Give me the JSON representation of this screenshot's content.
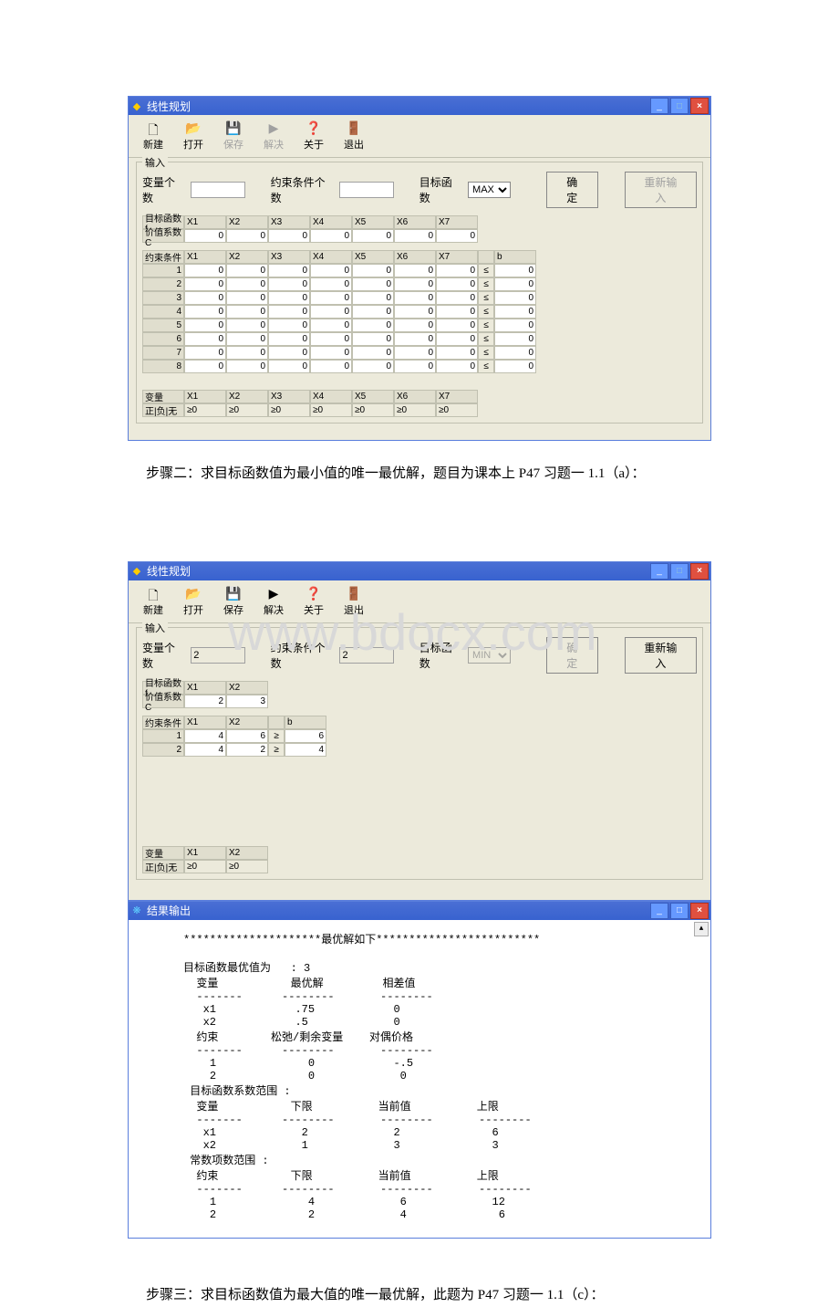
{
  "watermark": "www.bdocx.com",
  "win1": {
    "title": "线性规划",
    "toolbar": [
      "新建",
      "打开",
      "保存",
      "解决",
      "关于",
      "退出"
    ],
    "input_legend": "输入",
    "labels": {
      "vars": "变量个数",
      "cons": "约束条件个数",
      "obj": "目标函数"
    },
    "obj_sel": "MAX",
    "confirm": "确定",
    "reinput": "重新输入",
    "obj_hdr": "目标函数f",
    "coef_hdr": "价值系数C",
    "xhdr": [
      "X1",
      "X2",
      "X3",
      "X4",
      "X5",
      "X6",
      "X7"
    ],
    "coef": [
      "0",
      "0",
      "0",
      "0",
      "0",
      "0",
      "0"
    ],
    "con_hdr": "约束条件",
    "b_hdr": "b",
    "ineq": "≤",
    "rows": [
      [
        "1",
        "0",
        "0",
        "0",
        "0",
        "0",
        "0",
        "0",
        "0"
      ],
      [
        "2",
        "0",
        "0",
        "0",
        "0",
        "0",
        "0",
        "0",
        "0"
      ],
      [
        "3",
        "0",
        "0",
        "0",
        "0",
        "0",
        "0",
        "0",
        "0"
      ],
      [
        "4",
        "0",
        "0",
        "0",
        "0",
        "0",
        "0",
        "0",
        "0"
      ],
      [
        "5",
        "0",
        "0",
        "0",
        "0",
        "0",
        "0",
        "0",
        "0"
      ],
      [
        "6",
        "0",
        "0",
        "0",
        "0",
        "0",
        "0",
        "0",
        "0"
      ],
      [
        "7",
        "0",
        "0",
        "0",
        "0",
        "0",
        "0",
        "0",
        "0"
      ],
      [
        "8",
        "0",
        "0",
        "0",
        "0",
        "0",
        "0",
        "0",
        "0"
      ]
    ],
    "var_hdr": "变量",
    "pn_hdr": "正|负|无",
    "ge": "≥0"
  },
  "text1": "步骤二：求目标函数值为最小值的唯一最优解，题目为课本上 P47 习题一 1.1（a）：",
  "win2": {
    "title": "线性规划",
    "vars_val": "2",
    "cons_val": "2",
    "obj_sel": "MIN",
    "xhdr": [
      "X1",
      "X2"
    ],
    "coef": [
      "2",
      "3"
    ],
    "b_hdr": "b",
    "ineq": "≥",
    "rows": [
      [
        "1",
        "4",
        "6",
        "6"
      ],
      [
        "2",
        "4",
        "2",
        "4"
      ]
    ],
    "ge": "≥0"
  },
  "win3": {
    "title": "结果输出",
    "header": "*********************最优解如下*************************",
    "l1": "目标函数最优值为",
    "val": ": 3",
    "l2": "变量",
    "opt": "最优解",
    "rc": "相差值",
    "x1": "x1",
    "x2": "x2",
    "v_x1": ".75",
    "v_x2": ".5",
    "r_x1": "0",
    "r_x2": "0",
    "l3": "约束",
    "slack": "松弛/剩余变量",
    "dual": "对偶价格",
    "c1": "1",
    "c2": "2",
    "s1": "0",
    "s2": "0",
    "d1": "-.5",
    "d2": "0",
    "l4": "目标函数系数范围 :",
    "l5": "变量",
    "low": "下限",
    "cur": "当前值",
    "up": "上限",
    "vr1_l": "2",
    "vr1_c": "2",
    "vr1_u": "6",
    "vr2_l": "1",
    "vr2_c": "3",
    "vr2_u": "3",
    "l6": "常数项数范围 :",
    "l7": "约束",
    "cr1_l": "4",
    "cr1_c": "6",
    "cr1_u": "12",
    "cr2_l": "2",
    "cr2_c": "4",
    "cr2_u": "6"
  },
  "text2": "步骤三：求目标函数值为最大值的唯一最优解，此题为 P47 习题一 1.1（c）："
}
